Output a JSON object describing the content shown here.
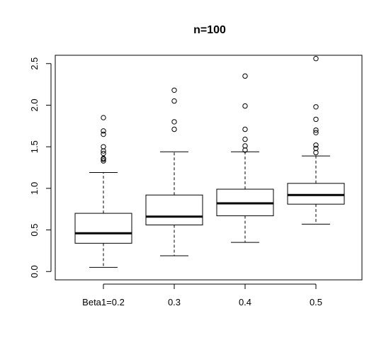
{
  "chart_data": {
    "type": "boxplot",
    "title": "n=100",
    "xlabel": "",
    "ylabel": "",
    "categories": [
      "Beta1=0.2",
      "0.3",
      "0.4",
      "0.5"
    ],
    "ylim": [
      -0.1,
      2.6
    ],
    "yticks": [
      0.0,
      0.5,
      1.0,
      1.5,
      2.0,
      2.5
    ],
    "ytick_labels": [
      "0.0",
      "0.5",
      "1.0",
      "1.5",
      "2.0",
      "2.5"
    ],
    "grid": false,
    "boxes": [
      {
        "category": "Beta1=0.2",
        "whisker_low": 0.05,
        "q1": 0.34,
        "median": 0.46,
        "q3": 0.7,
        "whisker_high": 1.19,
        "outliers": [
          1.33,
          1.35,
          1.36,
          1.42,
          1.45,
          1.5,
          1.65,
          1.69,
          1.85
        ]
      },
      {
        "category": "0.3",
        "whisker_low": 0.19,
        "q1": 0.56,
        "median": 0.66,
        "q3": 0.92,
        "whisker_high": 1.44,
        "outliers": [
          1.71,
          1.8,
          2.05,
          2.18
        ]
      },
      {
        "category": "0.4",
        "whisker_low": 0.35,
        "q1": 0.67,
        "median": 0.82,
        "q3": 0.99,
        "whisker_high": 1.44,
        "outliers": [
          1.46,
          1.51,
          1.59,
          1.71,
          1.99,
          2.35
        ]
      },
      {
        "category": "0.5",
        "whisker_low": 0.57,
        "q1": 0.81,
        "median": 0.92,
        "q3": 1.06,
        "whisker_high": 1.39,
        "outliers": [
          1.43,
          1.48,
          1.52,
          1.67,
          1.7,
          1.83,
          1.98,
          2.56
        ]
      }
    ]
  }
}
